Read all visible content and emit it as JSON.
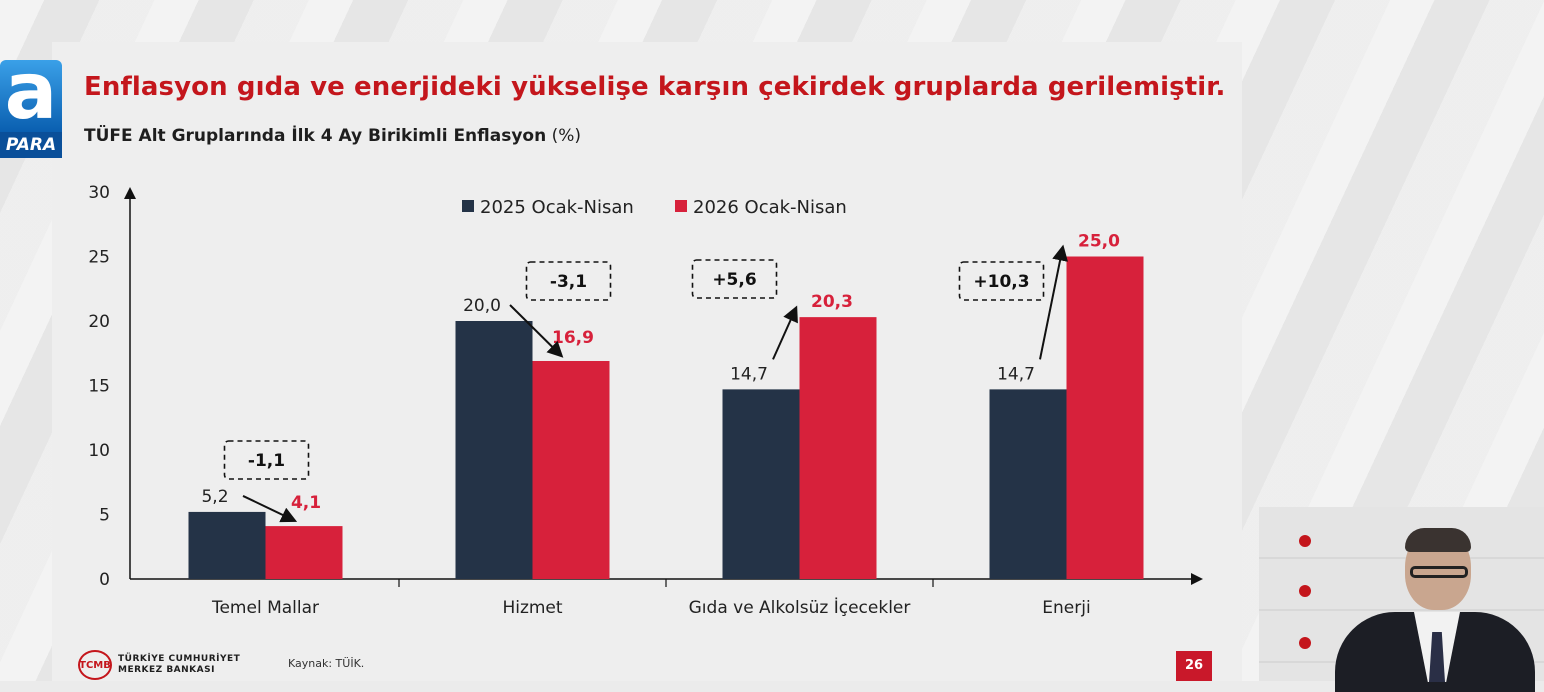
{
  "channel": {
    "logo_letter": "a",
    "logo_sub": "PARA"
  },
  "slide": {
    "headline": "Enflasyon gıda ve enerjideki yükselişe karşın çekirdek gruplarda gerilemiştir.",
    "subtitle_main": "TÜFE Alt Gruplarında İlk 4 Ay Birikimli Enflasyon",
    "subtitle_unit": "(%)",
    "footer": {
      "bank_line1": "TÜRKİYE CUMHURİYET",
      "bank_line2": "MERKEZ BANKASI",
      "emblem": "TCMB",
      "source": "Kaynak: TÜİK.",
      "page": "26"
    }
  },
  "chart_data": {
    "type": "bar",
    "categories": [
      "Temel Mallar",
      "Hizmet",
      "Gıda ve Alkolsüz İçecekler",
      "Enerji"
    ],
    "series": [
      {
        "name": "2025 Ocak-Nisan",
        "color": "#243347",
        "values": [
          5.2,
          20.0,
          14.7,
          14.7
        ],
        "labels": [
          "5,2",
          "20,0",
          "14,7",
          "14,7"
        ]
      },
      {
        "name": "2026 Ocak-Nisan",
        "color": "#d7213b",
        "values": [
          4.1,
          16.9,
          20.3,
          25.0
        ],
        "labels": [
          "4,1",
          "16,9",
          "20,3",
          "25,0"
        ]
      }
    ],
    "changes": [
      "-1,1",
      "-3,1",
      "+5,6",
      "+10,3"
    ],
    "yticks": [
      0,
      5,
      10,
      15,
      20,
      25,
      30
    ],
    "ylim": [
      0,
      30
    ],
    "legend_position": "top-center",
    "grid": false
  }
}
